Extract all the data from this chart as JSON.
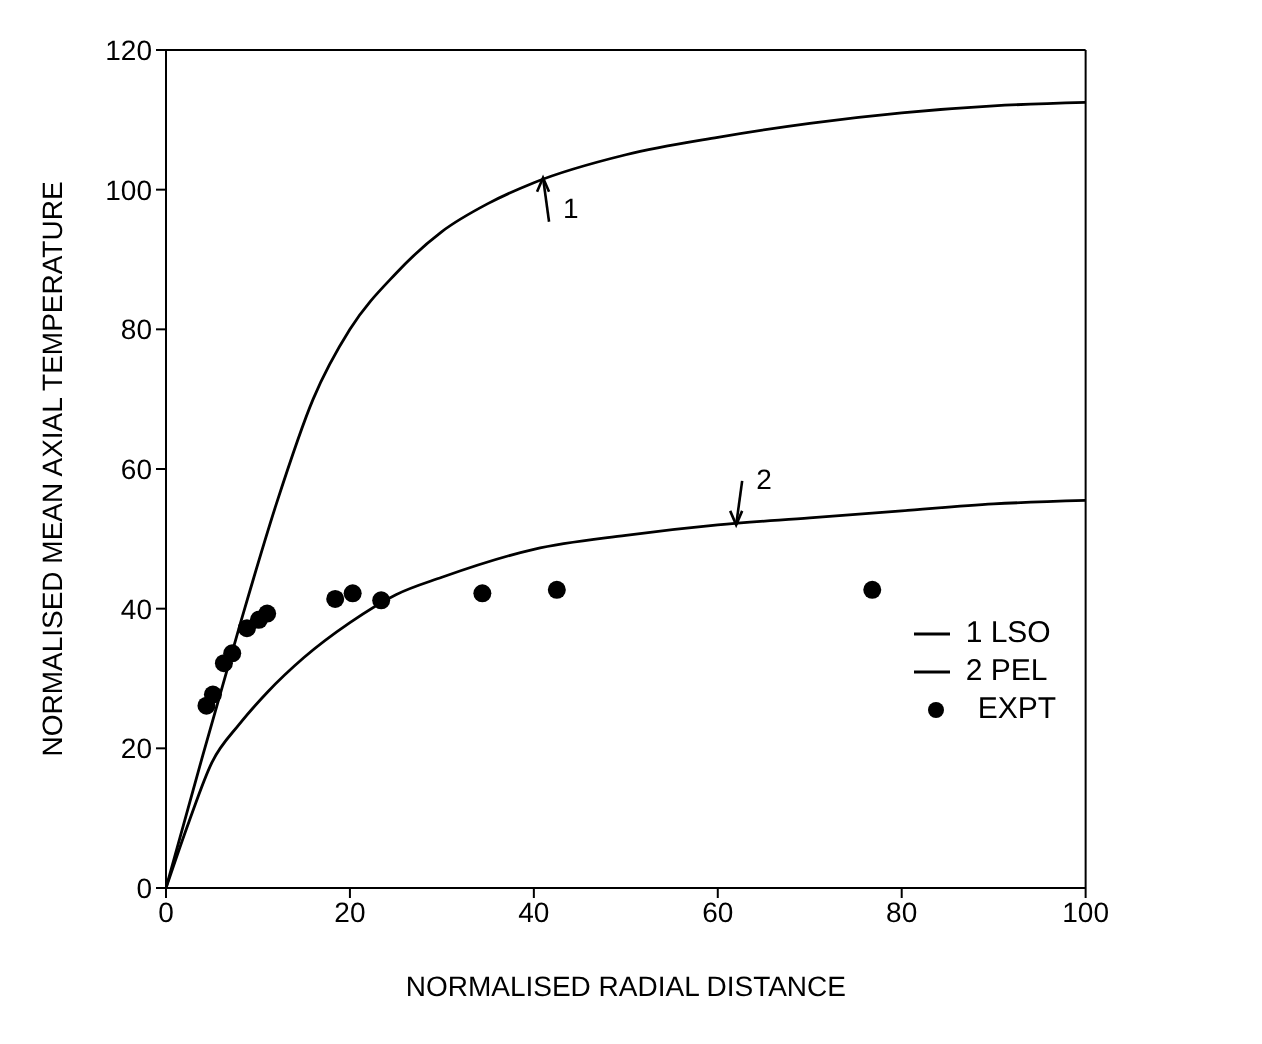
{
  "chart_data": {
    "type": "line",
    "xlabel": "NORMALISED RADIAL DISTANCE",
    "ylabel": "NORMALISED MEAN AXIAL TEMPERATURE",
    "xlim": [
      0,
      100
    ],
    "xticks": [
      0,
      20,
      40,
      60,
      80,
      100
    ],
    "ylim": [
      0,
      120
    ],
    "yticks": [
      0,
      20,
      40,
      60,
      80,
      100,
      120
    ],
    "grid": false,
    "legend": "bottom right",
    "marker": "none",
    "line_style": "solid",
    "series": [
      {
        "name": "1 LSO",
        "color": "#000000",
        "x": [
          0,
          4,
          8,
          12,
          16,
          20,
          25,
          30,
          35,
          40,
          50,
          60,
          70,
          80,
          90,
          100
        ],
        "values": [
          0,
          19,
          37.5,
          55,
          70,
          80,
          88,
          94,
          98,
          101,
          105,
          107.5,
          109.5,
          111,
          112,
          112.5
        ]
      },
      {
        "name": "2 PEL",
        "color": "#000000",
        "x": [
          0,
          2.5,
          5,
          8,
          11,
          15,
          20,
          25,
          30,
          40,
          50,
          60,
          70,
          80,
          90,
          100
        ],
        "values": [
          0,
          9.5,
          18,
          23.5,
          28,
          33,
          38,
          42,
          44.5,
          48.5,
          50.5,
          52,
          53,
          54,
          55,
          55.5
        ]
      },
      {
        "name": "EXPT",
        "type": "scatter",
        "color": "#000000",
        "marker": "circle",
        "x": [
          4.4,
          5.1,
          6.3,
          7.2,
          8.8,
          10.1,
          11.0,
          18.4,
          20.3,
          23.4,
          34.4,
          42.5,
          76.8
        ],
        "values": [
          26.1,
          27.7,
          32.2,
          33.6,
          37.2,
          38.4,
          39.3,
          41.4,
          42.2,
          41.2,
          42.2,
          42.7,
          42.7
        ]
      }
    ],
    "annotations": [
      {
        "text": "1",
        "x": 41,
        "y": 101.7
      },
      {
        "text": "2",
        "x": 62,
        "y": 52
      }
    ]
  }
}
